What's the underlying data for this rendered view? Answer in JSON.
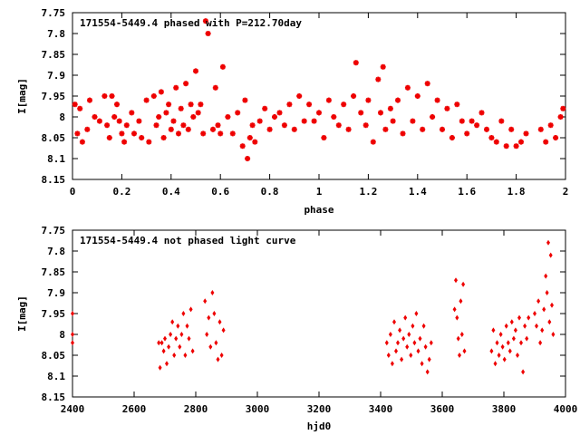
{
  "chart_data": [
    {
      "type": "scatter",
      "title": "171554-5449.4 phased with P=212.70day",
      "xlabel": "phase",
      "ylabel": "I[mag]",
      "xlim": [
        0,
        2
      ],
      "ylim": [
        8.15,
        7.75
      ],
      "xticks": [
        "0",
        "0.2",
        "0.4",
        "0.6",
        "0.8",
        "1",
        "1.2",
        "1.4",
        "1.6",
        "1.8",
        "2"
      ],
      "yticks": [
        "7.75",
        "7.8",
        "7.85",
        "7.9",
        "7.95",
        "8",
        "8.05",
        "8.1",
        "8.15"
      ],
      "marker": "star",
      "color": "#ee0000",
      "grid": false,
      "points": [
        [
          0.01,
          7.97
        ],
        [
          0.02,
          8.04
        ],
        [
          0.03,
          7.98
        ],
        [
          0.04,
          8.06
        ],
        [
          0.06,
          8.03
        ],
        [
          0.07,
          7.96
        ],
        [
          0.09,
          8.0
        ],
        [
          0.11,
          8.01
        ],
        [
          0.13,
          7.95
        ],
        [
          0.14,
          8.02
        ],
        [
          0.15,
          8.05
        ],
        [
          0.16,
          7.95
        ],
        [
          0.17,
          8.0
        ],
        [
          0.18,
          7.97
        ],
        [
          0.19,
          8.01
        ],
        [
          0.2,
          8.04
        ],
        [
          0.21,
          8.06
        ],
        [
          0.22,
          8.02
        ],
        [
          0.24,
          7.99
        ],
        [
          0.25,
          8.04
        ],
        [
          0.27,
          8.01
        ],
        [
          0.28,
          8.05
        ],
        [
          0.3,
          7.96
        ],
        [
          0.31,
          8.06
        ],
        [
          0.33,
          7.95
        ],
        [
          0.34,
          8.02
        ],
        [
          0.35,
          8.0
        ],
        [
          0.36,
          7.94
        ],
        [
          0.37,
          8.05
        ],
        [
          0.38,
          7.99
        ],
        [
          0.39,
          7.97
        ],
        [
          0.4,
          8.03
        ],
        [
          0.41,
          8.01
        ],
        [
          0.42,
          7.93
        ],
        [
          0.43,
          8.04
        ],
        [
          0.44,
          7.98
        ],
        [
          0.45,
          8.02
        ],
        [
          0.46,
          7.92
        ],
        [
          0.47,
          8.03
        ],
        [
          0.48,
          7.97
        ],
        [
          0.49,
          8.0
        ],
        [
          0.5,
          7.89
        ],
        [
          0.51,
          7.99
        ],
        [
          0.52,
          7.97
        ],
        [
          0.53,
          8.04
        ],
        [
          0.54,
          7.77
        ],
        [
          0.55,
          7.8
        ],
        [
          0.57,
          8.03
        ],
        [
          0.58,
          7.93
        ],
        [
          0.59,
          8.02
        ],
        [
          0.6,
          8.04
        ],
        [
          0.61,
          7.88
        ],
        [
          0.63,
          8.0
        ],
        [
          0.65,
          8.04
        ],
        [
          0.67,
          7.99
        ],
        [
          0.69,
          8.07
        ],
        [
          0.7,
          7.96
        ],
        [
          0.71,
          8.1
        ],
        [
          0.72,
          8.05
        ],
        [
          0.73,
          8.02
        ],
        [
          0.74,
          8.06
        ],
        [
          0.76,
          8.01
        ],
        [
          0.78,
          7.98
        ],
        [
          0.8,
          8.03
        ],
        [
          0.82,
          8.0
        ],
        [
          0.84,
          7.99
        ],
        [
          0.86,
          8.02
        ],
        [
          0.88,
          7.97
        ],
        [
          0.9,
          8.03
        ],
        [
          0.92,
          7.95
        ],
        [
          0.94,
          8.01
        ],
        [
          0.96,
          7.97
        ],
        [
          0.98,
          8.01
        ],
        [
          1.0,
          7.99
        ],
        [
          1.02,
          8.05
        ],
        [
          1.04,
          7.96
        ],
        [
          1.06,
          8.0
        ],
        [
          1.08,
          8.02
        ],
        [
          1.1,
          7.97
        ],
        [
          1.12,
          8.03
        ],
        [
          1.14,
          7.95
        ],
        [
          1.15,
          7.87
        ],
        [
          1.17,
          7.99
        ],
        [
          1.19,
          8.02
        ],
        [
          1.2,
          7.96
        ],
        [
          1.22,
          8.06
        ],
        [
          1.24,
          7.91
        ],
        [
          1.25,
          7.99
        ],
        [
          1.26,
          7.88
        ],
        [
          1.27,
          8.03
        ],
        [
          1.29,
          7.98
        ],
        [
          1.3,
          8.01
        ],
        [
          1.32,
          7.96
        ],
        [
          1.34,
          8.04
        ],
        [
          1.36,
          7.93
        ],
        [
          1.38,
          8.01
        ],
        [
          1.4,
          7.95
        ],
        [
          1.42,
          8.03
        ],
        [
          1.44,
          7.92
        ],
        [
          1.46,
          8.0
        ],
        [
          1.48,
          7.96
        ],
        [
          1.5,
          8.03
        ],
        [
          1.52,
          7.98
        ],
        [
          1.54,
          8.05
        ],
        [
          1.56,
          7.97
        ],
        [
          1.58,
          8.01
        ],
        [
          1.6,
          8.04
        ],
        [
          1.62,
          8.01
        ],
        [
          1.64,
          8.02
        ],
        [
          1.66,
          7.99
        ],
        [
          1.68,
          8.03
        ],
        [
          1.7,
          8.05
        ],
        [
          1.72,
          8.06
        ],
        [
          1.74,
          8.01
        ],
        [
          1.76,
          8.07
        ],
        [
          1.78,
          8.03
        ],
        [
          1.8,
          8.07
        ],
        [
          1.82,
          8.06
        ],
        [
          1.84,
          8.04
        ],
        [
          1.9,
          8.03
        ],
        [
          1.92,
          8.06
        ],
        [
          1.94,
          8.02
        ],
        [
          1.96,
          8.05
        ],
        [
          1.98,
          8.0
        ],
        [
          1.99,
          7.98
        ]
      ]
    },
    {
      "type": "scatter",
      "title": "171554-5449.4 not phased light curve",
      "xlabel": "hjd0",
      "ylabel": "I[mag]",
      "xlim": [
        2400,
        4000
      ],
      "ylim": [
        8.15,
        7.75
      ],
      "xticks": [
        "2400",
        "2600",
        "2800",
        "3000",
        "3200",
        "3400",
        "3600",
        "3800",
        "4000"
      ],
      "yticks": [
        "7.75",
        "7.8",
        "7.85",
        "7.9",
        "7.95",
        "8",
        "8.05",
        "8.1",
        "8.15"
      ],
      "marker": "diamond",
      "color": "#ee0000",
      "grid": false,
      "points": [
        [
          2400,
          7.95
        ],
        [
          2400,
          8.0
        ],
        [
          2400,
          8.02
        ],
        [
          2680,
          8.02
        ],
        [
          2684,
          8.08
        ],
        [
          2690,
          8.02
        ],
        [
          2696,
          8.04
        ],
        [
          2700,
          8.01
        ],
        [
          2706,
          8.07
        ],
        [
          2712,
          8.03
        ],
        [
          2718,
          8.0
        ],
        [
          2724,
          7.97
        ],
        [
          2730,
          8.05
        ],
        [
          2736,
          8.01
        ],
        [
          2742,
          7.98
        ],
        [
          2748,
          8.03
        ],
        [
          2754,
          8.0
        ],
        [
          2760,
          7.95
        ],
        [
          2766,
          8.05
        ],
        [
          2772,
          7.98
        ],
        [
          2778,
          8.01
        ],
        [
          2784,
          7.94
        ],
        [
          2790,
          8.04
        ],
        [
          2830,
          7.92
        ],
        [
          2836,
          8.0
        ],
        [
          2842,
          7.96
        ],
        [
          2848,
          8.03
        ],
        [
          2854,
          7.9
        ],
        [
          2860,
          7.95
        ],
        [
          2866,
          8.02
        ],
        [
          2872,
          8.06
        ],
        [
          2878,
          7.97
        ],
        [
          2884,
          8.05
        ],
        [
          2890,
          7.99
        ],
        [
          3420,
          8.02
        ],
        [
          3426,
          8.05
        ],
        [
          3432,
          8.0
        ],
        [
          3438,
          8.07
        ],
        [
          3444,
          7.97
        ],
        [
          3450,
          8.04
        ],
        [
          3456,
          8.02
        ],
        [
          3462,
          7.99
        ],
        [
          3468,
          8.06
        ],
        [
          3474,
          8.01
        ],
        [
          3480,
          7.96
        ],
        [
          3486,
          8.03
        ],
        [
          3492,
          8.0
        ],
        [
          3498,
          8.05
        ],
        [
          3504,
          7.98
        ],
        [
          3510,
          8.02
        ],
        [
          3516,
          7.95
        ],
        [
          3522,
          8.04
        ],
        [
          3528,
          8.01
        ],
        [
          3534,
          8.07
        ],
        [
          3540,
          7.98
        ],
        [
          3546,
          8.03
        ],
        [
          3552,
          8.09
        ],
        [
          3558,
          8.06
        ],
        [
          3564,
          8.02
        ],
        [
          3640,
          7.94
        ],
        [
          3644,
          7.87
        ],
        [
          3648,
          7.96
        ],
        [
          3652,
          8.01
        ],
        [
          3656,
          8.05
        ],
        [
          3660,
          7.92
        ],
        [
          3664,
          8.0
        ],
        [
          3668,
          7.88
        ],
        [
          3672,
          8.04
        ],
        [
          3760,
          8.04
        ],
        [
          3766,
          7.99
        ],
        [
          3772,
          8.07
        ],
        [
          3778,
          8.02
        ],
        [
          3784,
          8.05
        ],
        [
          3790,
          8.0
        ],
        [
          3796,
          8.03
        ],
        [
          3802,
          8.06
        ],
        [
          3808,
          7.98
        ],
        [
          3814,
          8.02
        ],
        [
          3820,
          8.04
        ],
        [
          3826,
          7.97
        ],
        [
          3832,
          8.01
        ],
        [
          3838,
          7.99
        ],
        [
          3844,
          8.05
        ],
        [
          3850,
          7.96
        ],
        [
          3856,
          8.02
        ],
        [
          3862,
          8.09
        ],
        [
          3868,
          7.98
        ],
        [
          3874,
          8.01
        ],
        [
          3880,
          7.96
        ],
        [
          3900,
          7.95
        ],
        [
          3906,
          7.98
        ],
        [
          3912,
          7.92
        ],
        [
          3918,
          8.02
        ],
        [
          3924,
          7.99
        ],
        [
          3930,
          7.94
        ],
        [
          3936,
          7.86
        ],
        [
          3940,
          7.9
        ],
        [
          3944,
          7.78
        ],
        [
          3948,
          7.97
        ],
        [
          3952,
          7.81
        ],
        [
          3956,
          7.93
        ],
        [
          3960,
          8.0
        ]
      ]
    }
  ]
}
